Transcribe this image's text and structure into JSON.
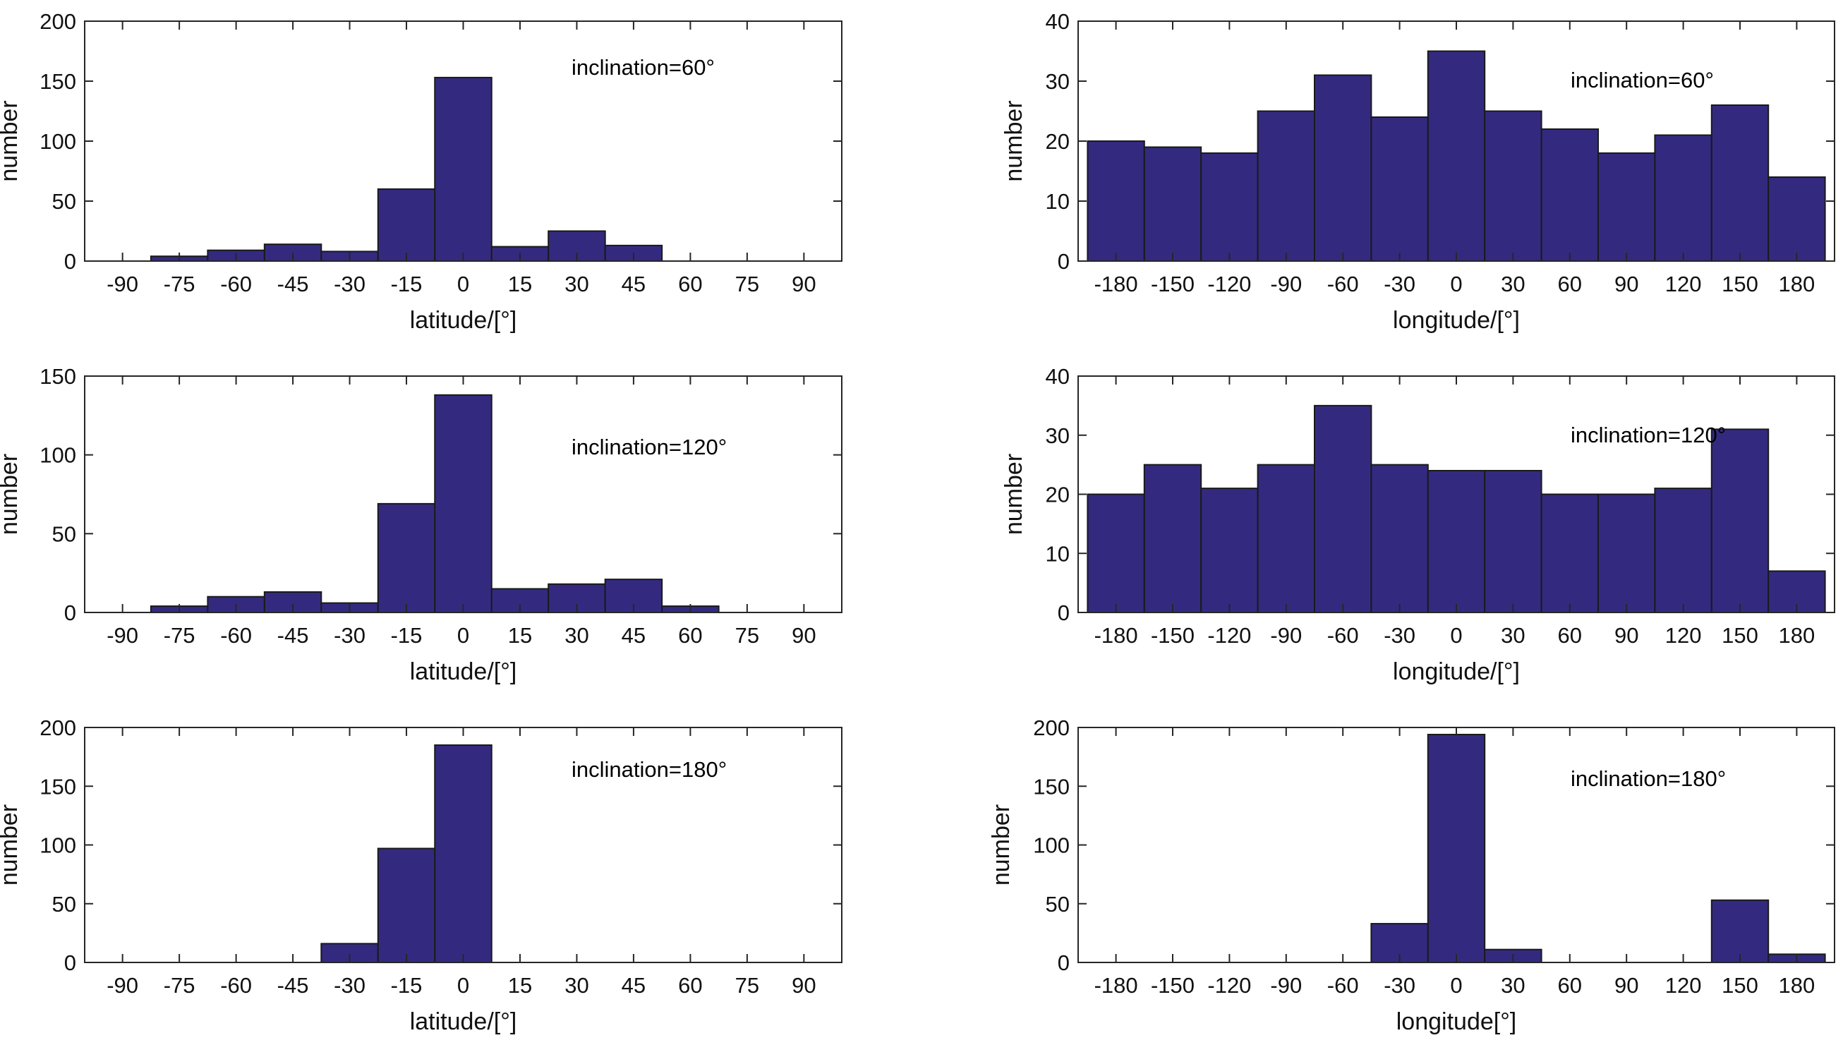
{
  "figure": {
    "bar_color": "#332a80",
    "edge_color": "#1a1a1a",
    "background": "#ffffff"
  },
  "chart_data": [
    {
      "type": "bar",
      "panel": "latitude-60",
      "xlabel": "latitude/[°]",
      "ylabel": "number",
      "annotation": "inclination=60°",
      "xticks": [
        -90,
        -75,
        -60,
        -45,
        -30,
        -15,
        0,
        15,
        30,
        45,
        60,
        75,
        90
      ],
      "xlim": [
        -100,
        100
      ],
      "yticks": [
        0,
        50,
        100,
        150,
        200
      ],
      "ylim": [
        0,
        200
      ],
      "bin_width": 15,
      "bins": [
        {
          "center": -75,
          "value": 4
        },
        {
          "center": -60,
          "value": 9
        },
        {
          "center": -45,
          "value": 14
        },
        {
          "center": -30,
          "value": 8
        },
        {
          "center": -15,
          "value": 60
        },
        {
          "center": 0,
          "value": 153
        },
        {
          "center": 15,
          "value": 12
        },
        {
          "center": 30,
          "value": 25
        },
        {
          "center": 45,
          "value": 13
        }
      ]
    },
    {
      "type": "bar",
      "panel": "longitude-60",
      "xlabel": "longitude/[°]",
      "ylabel": "number",
      "annotation": "inclination=60°",
      "xticks": [
        -180,
        -150,
        -120,
        -90,
        -60,
        -30,
        0,
        30,
        60,
        90,
        120,
        150,
        180
      ],
      "xlim": [
        -200,
        200
      ],
      "yticks": [
        0,
        10,
        20,
        30,
        40
      ],
      "ylim": [
        0,
        40
      ],
      "bin_width": 30,
      "bins": [
        {
          "center": -180,
          "value": 20
        },
        {
          "center": -150,
          "value": 19
        },
        {
          "center": -120,
          "value": 18
        },
        {
          "center": -90,
          "value": 25
        },
        {
          "center": -60,
          "value": 31
        },
        {
          "center": -30,
          "value": 24
        },
        {
          "center": 0,
          "value": 35
        },
        {
          "center": 30,
          "value": 25
        },
        {
          "center": 60,
          "value": 22
        },
        {
          "center": 90,
          "value": 18
        },
        {
          "center": 120,
          "value": 21
        },
        {
          "center": 150,
          "value": 26
        },
        {
          "center": 180,
          "value": 14
        }
      ]
    },
    {
      "type": "bar",
      "panel": "latitude-120",
      "xlabel": "latitude/[°]",
      "ylabel": "number",
      "annotation": "inclination=120°",
      "xticks": [
        -90,
        -75,
        -60,
        -45,
        -30,
        -15,
        0,
        15,
        30,
        45,
        60,
        75,
        90
      ],
      "xlim": [
        -100,
        100
      ],
      "yticks": [
        0,
        50,
        100,
        150
      ],
      "ylim": [
        0,
        150
      ],
      "bin_width": 15,
      "bins": [
        {
          "center": -75,
          "value": 4
        },
        {
          "center": -60,
          "value": 10
        },
        {
          "center": -45,
          "value": 13
        },
        {
          "center": -30,
          "value": 6
        },
        {
          "center": -15,
          "value": 69
        },
        {
          "center": 0,
          "value": 138
        },
        {
          "center": 15,
          "value": 15
        },
        {
          "center": 30,
          "value": 18
        },
        {
          "center": 45,
          "value": 21
        },
        {
          "center": 60,
          "value": 4
        }
      ]
    },
    {
      "type": "bar",
      "panel": "longitude-120",
      "xlabel": "longitude/[°]",
      "ylabel": "number",
      "annotation": "inclination=120°",
      "xticks": [
        -180,
        -150,
        -120,
        -90,
        -60,
        -30,
        0,
        30,
        60,
        90,
        120,
        150,
        180
      ],
      "xlim": [
        -200,
        200
      ],
      "yticks": [
        0,
        10,
        20,
        30,
        40
      ],
      "ylim": [
        0,
        40
      ],
      "bin_width": 30,
      "bins": [
        {
          "center": -180,
          "value": 20
        },
        {
          "center": -150,
          "value": 25
        },
        {
          "center": -120,
          "value": 21
        },
        {
          "center": -90,
          "value": 25
        },
        {
          "center": -60,
          "value": 35
        },
        {
          "center": -30,
          "value": 25
        },
        {
          "center": 0,
          "value": 24
        },
        {
          "center": 30,
          "value": 24
        },
        {
          "center": 60,
          "value": 20
        },
        {
          "center": 90,
          "value": 20
        },
        {
          "center": 120,
          "value": 21
        },
        {
          "center": 150,
          "value": 31
        },
        {
          "center": 180,
          "value": 7
        }
      ]
    },
    {
      "type": "bar",
      "panel": "latitude-180",
      "xlabel": "latitude/[°]",
      "ylabel": "number",
      "annotation": "inclination=180°",
      "xticks": [
        -90,
        -75,
        -60,
        -45,
        -30,
        -15,
        0,
        15,
        30,
        45,
        60,
        75,
        90
      ],
      "xlim": [
        -100,
        100
      ],
      "yticks": [
        0,
        50,
        100,
        150,
        200
      ],
      "ylim": [
        0,
        200
      ],
      "bin_width": 15,
      "bins": [
        {
          "center": -30,
          "value": 16
        },
        {
          "center": -15,
          "value": 97
        },
        {
          "center": 0,
          "value": 185
        }
      ]
    },
    {
      "type": "bar",
      "panel": "longitude-180",
      "xlabel": "longitude[°]",
      "ylabel": "number",
      "annotation": "inclination=180°",
      "xticks": [
        -180,
        -150,
        -120,
        -90,
        -60,
        -30,
        0,
        30,
        60,
        90,
        120,
        150,
        180
      ],
      "xlim": [
        -200,
        200
      ],
      "yticks": [
        0,
        50,
        100,
        150,
        200
      ],
      "ylim": [
        0,
        200
      ],
      "bin_width": 30,
      "bins": [
        {
          "center": -30,
          "value": 33
        },
        {
          "center": 0,
          "value": 194
        },
        {
          "center": 30,
          "value": 11
        },
        {
          "center": 150,
          "value": 53
        },
        {
          "center": 180,
          "value": 7
        }
      ]
    }
  ]
}
